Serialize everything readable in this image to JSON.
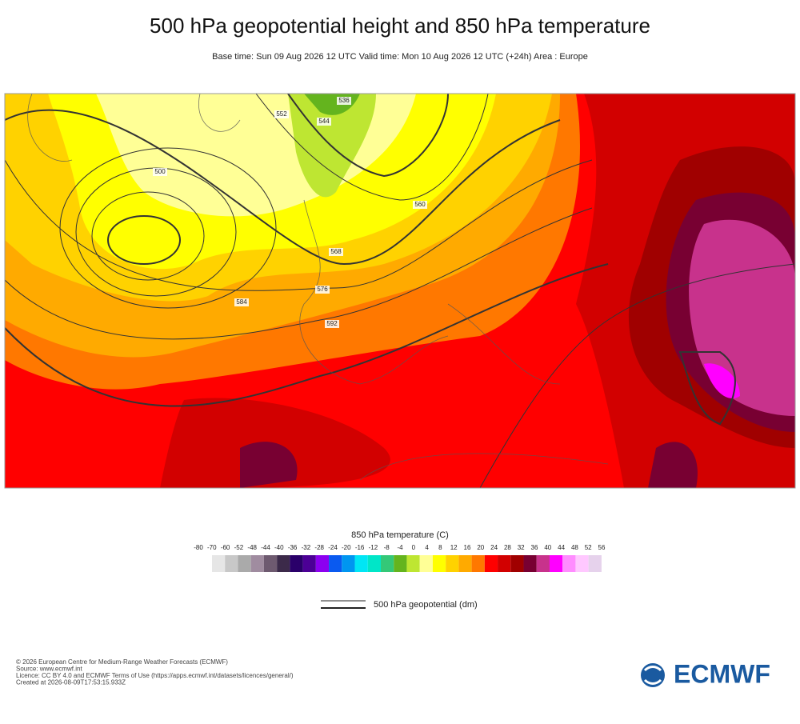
{
  "header": {
    "title": "500 hPa geopotential height and 850 hPa temperature",
    "subtitle": "Base time: Sun 09 Aug 2026 12 UTC Valid time: Mon 10 Aug 2026 12 UTC (+24h) Area : Europe"
  },
  "map": {
    "contour_labels": [
      "500",
      "536",
      "544",
      "552",
      "560",
      "568",
      "576",
      "584",
      "592"
    ]
  },
  "colorbar": {
    "title": "850 hPa temperature (C)",
    "levels": [
      -80,
      -70,
      -60,
      -52,
      -48,
      -44,
      -40,
      -36,
      -32,
      -28,
      -24,
      -20,
      -16,
      -12,
      -8,
      -4,
      0,
      4,
      8,
      12,
      16,
      20,
      24,
      28,
      32,
      36,
      40,
      44,
      48,
      52,
      56
    ],
    "colors": [
      "#e6e6e6",
      "#c8c8c8",
      "#aaaaaa",
      "#a08ca0",
      "#6e5a70",
      "#3c2a4a",
      "#2a006a",
      "#4c0096",
      "#8c00f0",
      "#0a5af0",
      "#0096f0",
      "#00e6f5",
      "#00e6c8",
      "#34c878",
      "#64b41e",
      "#bee632",
      "#ffff96",
      "#ffff00",
      "#ffd200",
      "#ffaa00",
      "#ff7800",
      "#ff0000",
      "#d20000",
      "#a00000",
      "#780032",
      "#c8328c",
      "#ff00ff",
      "#ff8cff",
      "#ffc8ff",
      "#e6d2ec"
    ]
  },
  "legend": {
    "line_label": "500 hPa geopotential (dm)"
  },
  "footer": {
    "lines": [
      "© 2026 European Centre for Medium-Range Weather Forecasts (ECMWF)",
      "Source: www.ecmwf.int",
      "Licence: CC BY 4.0 and ECMWF Terms of Use (https://apps.ecmwf.int/datasets/licences/general/)",
      "Created at 2026-08-09T17:53:15.933Z"
    ],
    "logo": "ECMWF"
  }
}
